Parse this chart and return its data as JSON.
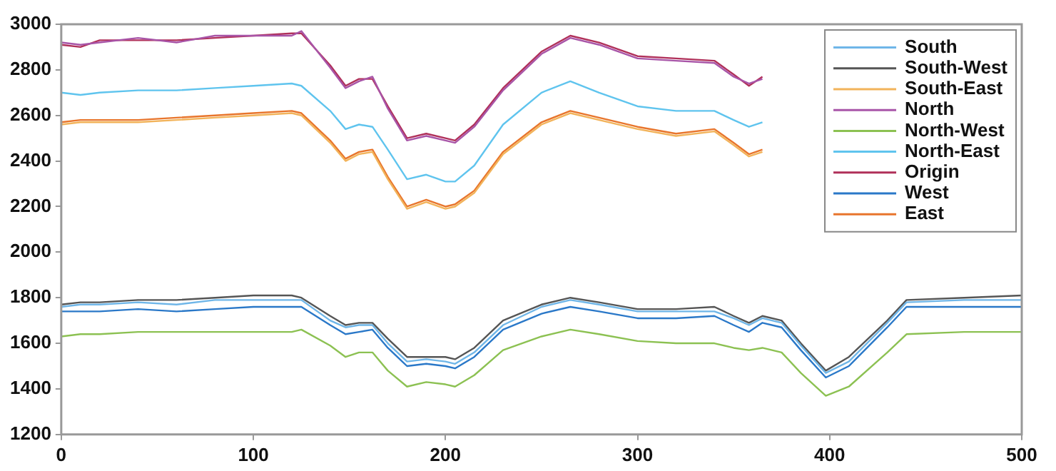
{
  "chart_data": {
    "type": "line",
    "x": [
      0,
      10,
      20,
      40,
      60,
      80,
      100,
      120,
      125,
      140,
      148,
      155,
      162,
      170,
      180,
      190,
      200,
      205,
      215,
      230,
      250,
      265,
      280,
      300,
      320,
      340,
      350,
      358,
      365,
      375,
      385,
      398,
      410,
      430,
      440,
      470,
      500
    ],
    "xlim": [
      0,
      500
    ],
    "xticks": [
      0,
      100,
      200,
      300,
      400,
      500
    ],
    "ylim": [
      1200,
      3000
    ],
    "yticks": [
      1200,
      1400,
      1600,
      1800,
      2000,
      2200,
      2400,
      2600,
      2800,
      3000
    ],
    "grid": false,
    "legend": "top right",
    "marker": "none",
    "line_style": "solid",
    "series": [
      {
        "name": "South",
        "color": "#6fb6e8",
        "values": [
          1760,
          1770,
          1770,
          1780,
          1770,
          1790,
          1790,
          1790,
          1790,
          1700,
          1670,
          1680,
          1680,
          1600,
          1520,
          1530,
          1520,
          1510,
          1560,
          1680,
          1760,
          1790,
          1770,
          1740,
          1740,
          1740,
          1710,
          1680,
          1710,
          1690,
          1590,
          1470,
          1520,
          1690,
          1780,
          1790,
          1790
        ]
      },
      {
        "name": "South-West",
        "color": "#555555",
        "values": [
          1770,
          1780,
          1780,
          1790,
          1790,
          1800,
          1810,
          1810,
          1800,
          1720,
          1680,
          1690,
          1690,
          1620,
          1540,
          1540,
          1540,
          1530,
          1580,
          1700,
          1770,
          1800,
          1780,
          1750,
          1750,
          1760,
          1720,
          1690,
          1720,
          1700,
          1600,
          1480,
          1540,
          1700,
          1790,
          1800,
          1810
        ]
      },
      {
        "name": "South-East",
        "color": "#f2b35a",
        "values": [
          2560,
          2570,
          2570,
          2570,
          2580,
          2590,
          2600,
          2610,
          2600,
          2480,
          2400,
          2430,
          2440,
          2320,
          2190,
          2220,
          2190,
          2200,
          2260,
          2430,
          2560,
          2610,
          2580,
          2540,
          2510,
          2530,
          2470,
          2420,
          2440,
          null,
          null,
          null,
          null,
          null,
          null,
          null,
          null
        ]
      },
      {
        "name": "North",
        "color": "#a855a8",
        "values": [
          2920,
          2910,
          2920,
          2940,
          2920,
          2950,
          2950,
          2950,
          2970,
          2810,
          2720,
          2750,
          2770,
          2630,
          2490,
          2510,
          2490,
          2480,
          2550,
          2710,
          2870,
          2940,
          2910,
          2850,
          2840,
          2830,
          2770,
          2740,
          2760,
          null,
          null,
          null,
          null,
          null,
          null,
          null,
          null
        ]
      },
      {
        "name": "North-West",
        "color": "#8cc152",
        "values": [
          1630,
          1640,
          1640,
          1650,
          1650,
          1650,
          1650,
          1650,
          1660,
          1590,
          1540,
          1560,
          1560,
          1480,
          1410,
          1430,
          1420,
          1410,
          1460,
          1570,
          1630,
          1660,
          1640,
          1610,
          1600,
          1600,
          1580,
          1570,
          1580,
          1560,
          1470,
          1370,
          1410,
          1560,
          1640,
          1650,
          1650
        ]
      },
      {
        "name": "North-East",
        "color": "#5fc4ee",
        "values": [
          2700,
          2690,
          2700,
          2710,
          2710,
          2720,
          2730,
          2740,
          2730,
          2620,
          2540,
          2560,
          2550,
          2450,
          2320,
          2340,
          2310,
          2310,
          2380,
          2560,
          2700,
          2750,
          2700,
          2640,
          2620,
          2620,
          2580,
          2550,
          2570,
          null,
          null,
          null,
          null,
          null,
          null,
          null,
          null
        ]
      },
      {
        "name": "Origin",
        "color": "#b0305a",
        "values": [
          2910,
          2900,
          2930,
          2930,
          2930,
          2940,
          2950,
          2960,
          2960,
          2820,
          2730,
          2760,
          2760,
          2640,
          2500,
          2520,
          2500,
          2490,
          2560,
          2720,
          2880,
          2950,
          2920,
          2860,
          2850,
          2840,
          2780,
          2730,
          2770,
          null,
          null,
          null,
          null,
          null,
          null,
          null,
          null
        ]
      },
      {
        "name": "West",
        "color": "#2a78c8",
        "values": [
          1740,
          1740,
          1740,
          1750,
          1740,
          1750,
          1760,
          1760,
          1760,
          1680,
          1640,
          1650,
          1660,
          1580,
          1500,
          1510,
          1500,
          1490,
          1540,
          1660,
          1730,
          1760,
          1740,
          1710,
          1710,
          1720,
          1680,
          1650,
          1690,
          1670,
          1570,
          1450,
          1500,
          1670,
          1760,
          1760,
          1760
        ]
      },
      {
        "name": "East",
        "color": "#e8752c",
        "values": [
          2570,
          2580,
          2580,
          2580,
          2590,
          2600,
          2610,
          2620,
          2610,
          2490,
          2410,
          2440,
          2450,
          2330,
          2200,
          2230,
          2200,
          2210,
          2270,
          2440,
          2570,
          2620,
          2590,
          2550,
          2520,
          2540,
          2480,
          2430,
          2450,
          null,
          null,
          null,
          null,
          null,
          null,
          null,
          null
        ]
      }
    ]
  }
}
